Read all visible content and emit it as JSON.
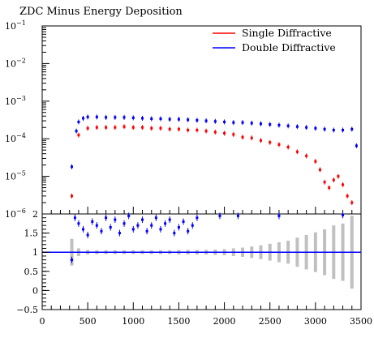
{
  "chart_data": [
    {
      "type": "scatter",
      "title": "ZDC Minus Energy Deposition",
      "xlabel": "",
      "ylabel": "",
      "ylog": true,
      "ylim": [
        1e-06,
        0.1
      ],
      "xlim": [
        0,
        3500
      ],
      "ytick_mantissas": [
        "10",
        "10",
        "10",
        "10",
        "10",
        "10"
      ],
      "ytick_exponents": [
        "−1",
        "−2",
        "−3",
        "−4",
        "−5",
        "−6"
      ],
      "legend_position": "top-right",
      "series": [
        {
          "name": "Single Diffractive",
          "color": "#ff0000",
          "x": [
            325,
            400,
            500,
            600,
            700,
            800,
            900,
            1000,
            1100,
            1200,
            1300,
            1400,
            1500,
            1600,
            1700,
            1800,
            1900,
            2000,
            2100,
            2200,
            2300,
            2400,
            2500,
            2600,
            2700,
            2800,
            2900,
            3000,
            3050,
            3100,
            3150,
            3200,
            3250,
            3300,
            3350,
            3400
          ],
          "y": [
            3e-06,
            0.000125,
            0.00019,
            0.0002,
            0.0002,
            0.0002,
            0.00021,
            0.0002,
            0.0002,
            0.00019,
            0.00019,
            0.00018,
            0.00018,
            0.00017,
            0.00017,
            0.00016,
            0.00015,
            0.00014,
            0.00013,
            0.00011,
            0.000105,
            9e-05,
            8e-05,
            7e-05,
            6e-05,
            4.5e-05,
            3.5e-05,
            2.5e-05,
            1.5e-05,
            7e-06,
            5e-06,
            8e-06,
            1e-05,
            6e-06,
            3e-06,
            2e-06
          ]
        },
        {
          "name": "Double Diffractive",
          "color": "#0000ff",
          "x": [
            325,
            375,
            400,
            450,
            500,
            600,
            700,
            800,
            900,
            1000,
            1100,
            1200,
            1300,
            1400,
            1500,
            1600,
            1700,
            1800,
            1900,
            2000,
            2100,
            2200,
            2300,
            2400,
            2500,
            2600,
            2700,
            2800,
            2900,
            3000,
            3100,
            3200,
            3300,
            3400,
            3450
          ],
          "y": [
            1.8e-05,
            0.00016,
            0.00028,
            0.00035,
            0.00038,
            0.00038,
            0.00037,
            0.00037,
            0.00037,
            0.00036,
            0.00035,
            0.00034,
            0.00034,
            0.00033,
            0.00033,
            0.00032,
            0.00031,
            0.0003,
            0.00029,
            0.00028,
            0.00027,
            0.00027,
            0.00026,
            0.00025,
            0.00024,
            0.00023,
            0.00022,
            0.00021,
            0.0002,
            0.00019,
            0.00018,
            0.00017,
            0.00017,
            0.00018,
            6.5e-05
          ]
        }
      ]
    },
    {
      "type": "scatter",
      "title": "",
      "xlabel": "",
      "ylabel": "",
      "xlim": [
        0,
        3500
      ],
      "ylim": [
        -0.5,
        2
      ],
      "xticks": [
        "0",
        "500",
        "1000",
        "1500",
        "2000",
        "2500",
        "3000",
        "3500"
      ],
      "yticks": [
        "−0.5",
        "0",
        "0.5",
        "1",
        "1.5",
        "2"
      ],
      "reference_line": 1,
      "reference_color": "#0000ff",
      "band_color": "#c0c0c0",
      "band": {
        "x": [
          325,
          400,
          500,
          600,
          700,
          800,
          900,
          1000,
          1100,
          1200,
          1300,
          1400,
          1500,
          1600,
          1700,
          1800,
          1900,
          2000,
          2100,
          2200,
          2300,
          2400,
          2500,
          2600,
          2700,
          2800,
          2900,
          3000,
          3100,
          3200,
          3300,
          3400
        ],
        "halfwidth": [
          0.35,
          0.1,
          0.06,
          0.05,
          0.05,
          0.05,
          0.05,
          0.05,
          0.05,
          0.05,
          0.05,
          0.05,
          0.06,
          0.06,
          0.06,
          0.06,
          0.07,
          0.08,
          0.1,
          0.12,
          0.15,
          0.18,
          0.22,
          0.26,
          0.3,
          0.38,
          0.45,
          0.52,
          0.6,
          0.7,
          0.75,
          0.95
        ]
      },
      "series": [
        {
          "name": "",
          "color": "#0000ff",
          "x": [
            325,
            360,
            400,
            450,
            500,
            550,
            600,
            650,
            700,
            750,
            800,
            850,
            900,
            950,
            1000,
            1050,
            1100,
            1150,
            1200,
            1250,
            1300,
            1350,
            1400,
            1450,
            1500,
            1550,
            1600,
            1650,
            1700,
            1950,
            2150,
            2600,
            3300
          ],
          "y": [
            0.8,
            1.9,
            1.75,
            1.6,
            1.45,
            1.8,
            1.7,
            1.55,
            1.9,
            1.65,
            1.85,
            1.5,
            1.75,
            1.95,
            1.6,
            1.7,
            1.85,
            1.55,
            1.7,
            1.9,
            1.6,
            1.75,
            1.85,
            1.5,
            1.65,
            1.8,
            1.55,
            1.7,
            1.9,
            1.95,
            1.95,
            1.95,
            1.97
          ]
        }
      ]
    }
  ]
}
